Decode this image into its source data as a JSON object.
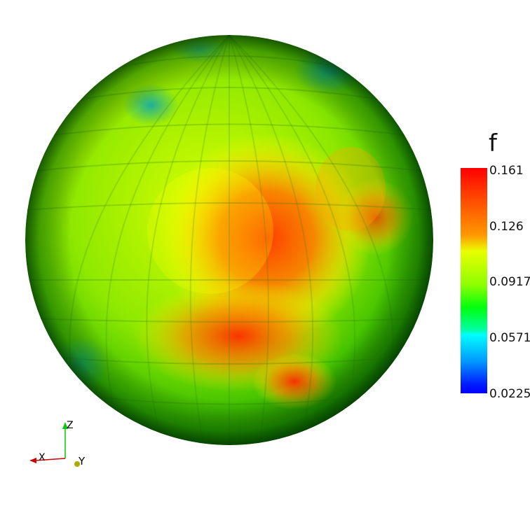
{
  "scalar_bar": {
    "title": "f",
    "ticks": [
      "0.161",
      "0.126",
      "0.0917",
      "0.0571",
      "0.0225"
    ],
    "colors": {
      "max": "#ff0000",
      "mid": "#ffff00",
      "low_mid": "#00ff00",
      "low": "#00ffff",
      "min": "#0000ff"
    }
  },
  "axes": {
    "x_label": "X",
    "y_label": "Y",
    "z_label": "Z",
    "x_color": "#cc0000",
    "y_color": "#aaaa00",
    "z_color": "#00cc00"
  },
  "scene": {
    "object": "sphere",
    "background": "#ffffff"
  }
}
